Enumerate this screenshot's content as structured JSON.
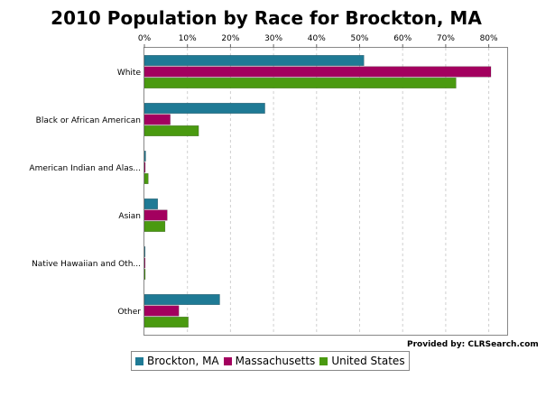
{
  "colors": {
    "Brockton, MA": "#1f7a95",
    "Massachusetts": "#a3005f",
    "United States": "#4a9a10"
  },
  "provider_text": "Provided by: CLRSearch.com",
  "chart_data": {
    "type": "bar",
    "orientation": "horizontal",
    "title": "2010 Population by Race for Brockton, MA",
    "xlabel": "",
    "ylabel": "",
    "xlim": [
      0,
      85
    ],
    "x_ticks": [
      "0%",
      "10%",
      "20%",
      "30%",
      "40%",
      "50%",
      "60%",
      "70%",
      "80%"
    ],
    "categories": [
      "White",
      "Black or African American",
      "American Indian and Alas...",
      "Asian",
      "Native Hawaiian and Oth...",
      "Other"
    ],
    "series": [
      {
        "name": "Brockton, MA",
        "values": [
          51,
          28,
          0.3,
          3.1,
          0.1,
          17.5
        ]
      },
      {
        "name": "Massachusetts",
        "values": [
          80.5,
          6,
          0.2,
          5.3,
          0.03,
          8
        ]
      },
      {
        "name": "United States",
        "values": [
          72.4,
          12.6,
          0.9,
          4.8,
          0.2,
          10.2
        ]
      }
    ],
    "grid": true,
    "legend": "bottom"
  }
}
